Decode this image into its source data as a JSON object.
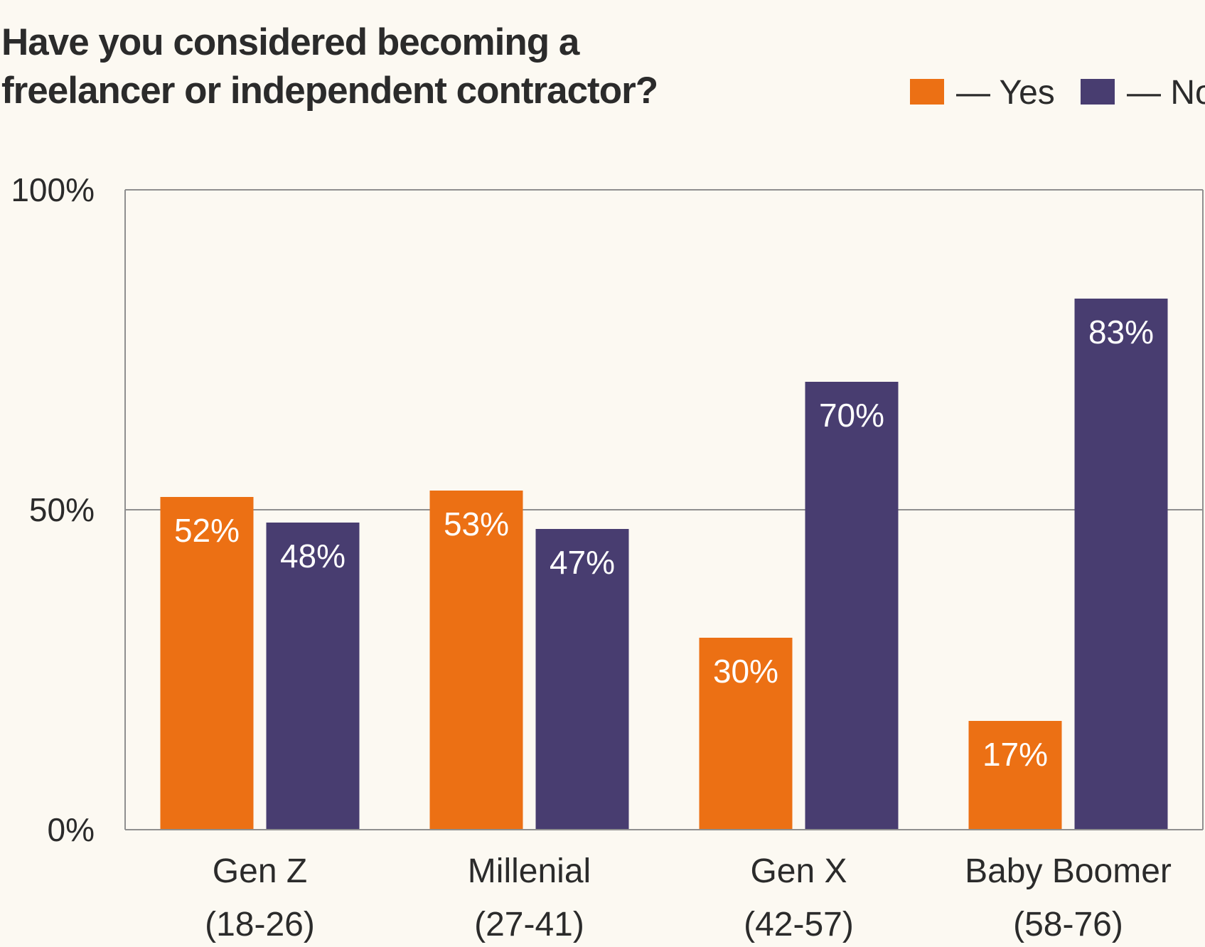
{
  "chart_data": {
    "type": "bar",
    "title_lines": [
      "Have you considered becoming a",
      "freelancer or independent contractor?"
    ],
    "categories": [
      {
        "name": "Gen Z",
        "range": "(18-26)"
      },
      {
        "name": "Millenial",
        "range": "(27-41)"
      },
      {
        "name": "Gen X",
        "range": "(42-57)"
      },
      {
        "name": "Baby Boomer",
        "range": "(58-76)"
      }
    ],
    "series": [
      {
        "name": "Yes",
        "legend_label": "— Yes",
        "color": "#ec7014",
        "values": [
          52,
          53,
          30,
          17
        ]
      },
      {
        "name": "No",
        "legend_label": "— No",
        "color": "#483d70",
        "values": [
          48,
          47,
          70,
          83
        ]
      }
    ],
    "value_labels": {
      "Yes": [
        "52%",
        "53%",
        "30%",
        "17%"
      ],
      "No": [
        "48%",
        "47%",
        "70%",
        "83%"
      ]
    },
    "yticks": [
      {
        "value": 0,
        "label": "0%"
      },
      {
        "value": 50,
        "label": "50%"
      },
      {
        "value": 100,
        "label": "100%"
      }
    ],
    "ylim": [
      0,
      100
    ],
    "grid": true,
    "legend_position": "top-right"
  }
}
